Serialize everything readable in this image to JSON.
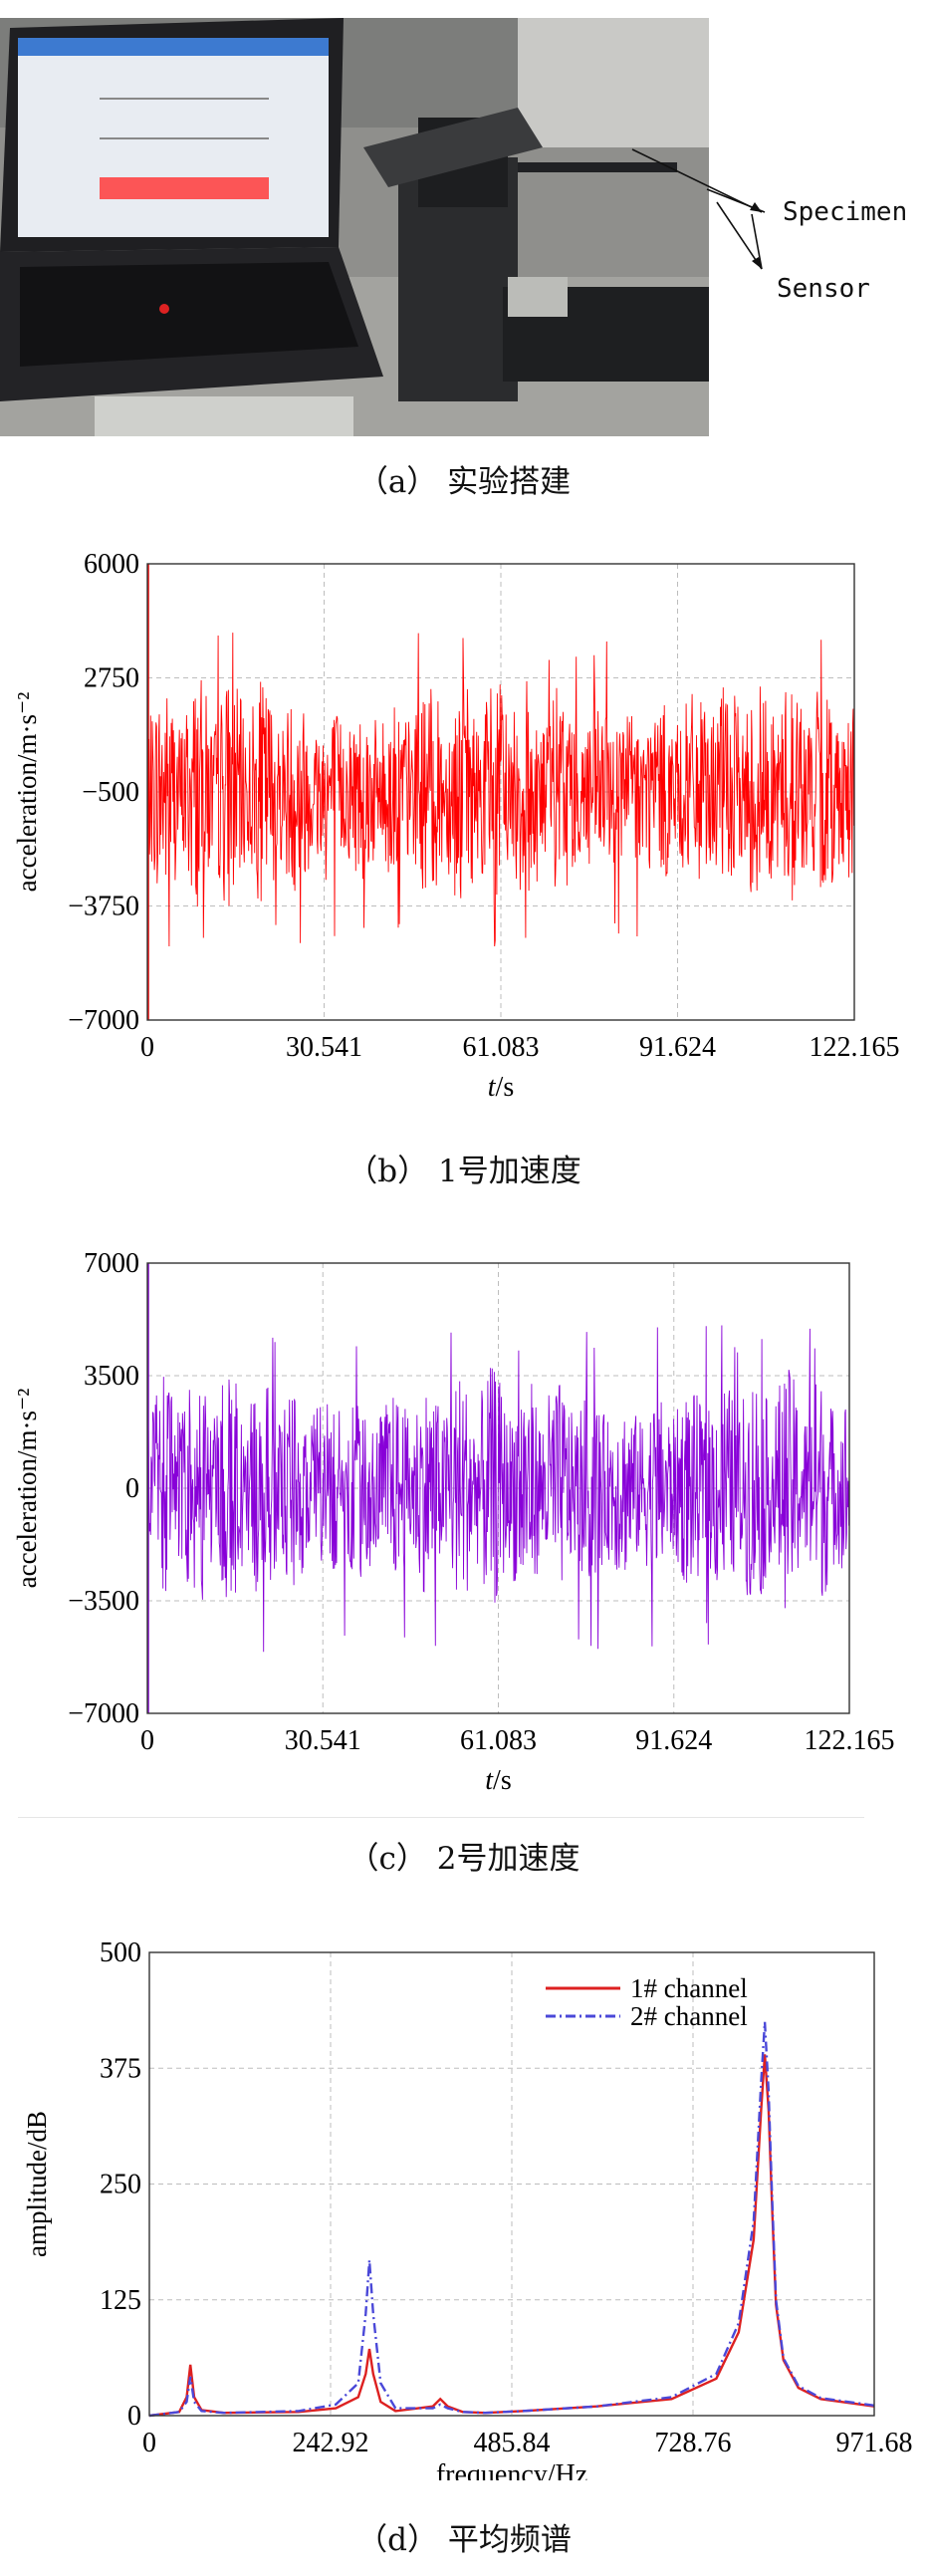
{
  "figure_a": {
    "caption": "（a） 实验搭建",
    "labels": {
      "specimen": "Specimen",
      "sensor": "Sensor"
    }
  },
  "figure_b": {
    "caption": "（b） 1号加速度"
  },
  "figure_c": {
    "caption": "（c） 2号加速度"
  },
  "figure_d": {
    "caption": "（d） 平均频谱"
  },
  "chart_data": [
    {
      "type": "line",
      "xlabel": "t/s",
      "ylabel": "acceleration/m·s⁻²",
      "xlim": [
        0,
        122.165
      ],
      "ylim": [
        -7000,
        6000
      ],
      "x_ticks": [
        0,
        30.541,
        61.083,
        91.624,
        122.165
      ],
      "x_tick_labels": [
        "0",
        "30.541",
        "61.083",
        "91.624",
        "122.165"
      ],
      "y_ticks": [
        6000,
        2750,
        -500,
        -3750,
        -7000
      ],
      "y_tick_labels": [
        "6000",
        "2750",
        "−500",
        "−3750",
        "−7000"
      ],
      "grid": true,
      "series": [
        {
          "color": "#ff0000",
          "center": -500,
          "amplitude": 3400,
          "min": -4900,
          "max": 4500,
          "start_spike": [
            -7000,
            6000
          ]
        }
      ]
    },
    {
      "type": "line",
      "xlabel": "t/s",
      "ylabel": "acceleration/m·s⁻²",
      "xlim": [
        0,
        122.165
      ],
      "ylim": [
        -7000,
        7000
      ],
      "x_ticks": [
        0,
        30.541,
        61.083,
        91.624,
        122.165
      ],
      "x_tick_labels": [
        "0",
        "30.541",
        "61.083",
        "91.624",
        "122.165"
      ],
      "y_ticks": [
        7000,
        3500,
        0,
        -3500,
        -7000
      ],
      "y_tick_labels": [
        "7000",
        "3500",
        "0",
        "−3500",
        "−7000"
      ],
      "grid": true,
      "series": [
        {
          "color": "#8800d8",
          "center": 0,
          "amplitude": 3800,
          "min": -5200,
          "max": 5200,
          "start_spike": [
            -7000,
            7000
          ]
        }
      ]
    },
    {
      "type": "line",
      "xlabel": "frequency/Hz",
      "ylabel": "amplitude/dB",
      "xlim": [
        0,
        971.68
      ],
      "ylim": [
        0,
        500
      ],
      "x_ticks": [
        0,
        242.92,
        485.84,
        728.76,
        971.68
      ],
      "x_tick_labels": [
        "0",
        "242.92",
        "485.84",
        "728.76",
        "971.68"
      ],
      "y_ticks": [
        500,
        375,
        250,
        125,
        0
      ],
      "y_tick_labels": [
        "500",
        "375",
        "250",
        "125",
        "0"
      ],
      "grid": true,
      "legend": "top-right",
      "series": [
        {
          "name": "1# channel",
          "color": "#dd2020",
          "style": "solid",
          "x": [
            0,
            40,
            50,
            55,
            60,
            70,
            100,
            200,
            250,
            280,
            290,
            295,
            300,
            310,
            330,
            380,
            390,
            400,
            420,
            450,
            500,
            600,
            700,
            760,
            790,
            810,
            820,
            825,
            830,
            835,
            840,
            850,
            870,
            900,
            971.68
          ],
          "y": [
            0,
            4,
            20,
            55,
            20,
            6,
            3,
            4,
            8,
            20,
            45,
            72,
            45,
            15,
            5,
            10,
            18,
            10,
            4,
            3,
            5,
            10,
            18,
            40,
            90,
            190,
            330,
            390,
            330,
            220,
            120,
            60,
            30,
            18,
            10
          ]
        },
        {
          "name": "2# channel",
          "color": "#4a48d8",
          "style": "dashdot",
          "x": [
            0,
            40,
            50,
            55,
            60,
            70,
            100,
            200,
            250,
            280,
            290,
            295,
            300,
            310,
            330,
            380,
            390,
            400,
            420,
            450,
            500,
            600,
            700,
            760,
            790,
            810,
            820,
            825,
            830,
            835,
            840,
            850,
            870,
            900,
            971.68
          ],
          "y": [
            0,
            4,
            15,
            42,
            15,
            5,
            3,
            5,
            12,
            35,
            110,
            168,
            110,
            35,
            8,
            8,
            12,
            8,
            4,
            3,
            5,
            10,
            20,
            45,
            100,
            210,
            360,
            425,
            350,
            230,
            125,
            62,
            32,
            19,
            11
          ]
        }
      ]
    }
  ]
}
